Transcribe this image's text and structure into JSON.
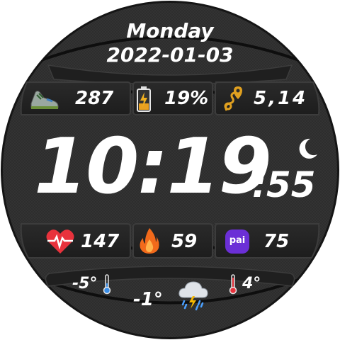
{
  "date": {
    "weekday": "Monday",
    "date": "2022-01-03"
  },
  "top_row": {
    "steps": "287",
    "battery": "19%",
    "distance": "5,14"
  },
  "time": {
    "hours_minutes": "10:19",
    "seconds": ":55"
  },
  "bottom_row": {
    "heart_rate": "147",
    "calories": "59",
    "pai": "75",
    "pai_badge": "pai"
  },
  "weather": {
    "low": "-5°",
    "current": "-1°",
    "high": "4°"
  },
  "icons": {
    "steps": "shoe-icon",
    "battery": "battery-charging-icon",
    "distance": "distance-route-icon",
    "night": "moon-icon",
    "heart": "heart-pulse-icon",
    "calories": "flame-icon",
    "pai": "pai-badge-icon",
    "low_temp": "thermometer-cold-icon",
    "weather": "thunder-rain-cloud-icon",
    "high_temp": "thermometer-hot-icon"
  },
  "colors": {
    "face": "#2b2b2b",
    "panel": "#232323",
    "bezel": "#151515",
    "text": "#ffffff",
    "heart": "#e8323c",
    "flame": "#f26a1b",
    "pai": "#6b2fd6",
    "distance": "#e0a020"
  }
}
